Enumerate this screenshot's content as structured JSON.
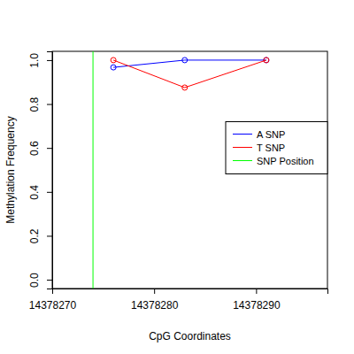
{
  "chart_data": {
    "type": "line",
    "x_label": "CpG Coordinates",
    "y_label": "Methylation Frequency",
    "x": [
      14378276,
      14378283,
      14378291
    ],
    "series": [
      {
        "name": "A SNP",
        "color": "#0000ff",
        "marker": "circle",
        "values": [
          0.967,
          1.0,
          1.0
        ]
      },
      {
        "name": "T SNP",
        "color": "#ff0000",
        "marker": "circle",
        "values": [
          1.0,
          0.875,
          1.0
        ]
      }
    ],
    "vlines": [
      {
        "name": "SNP Position",
        "color": "#00ff00",
        "x": 14378274
      }
    ],
    "xlim": [
      14378270,
      14378297
    ],
    "xticks": [
      14378270,
      14378280,
      14378290
    ],
    "ylim": [
      -0.04,
      1.04
    ],
    "yticks": [
      {
        "value": 0,
        "label": "0.0"
      },
      0.2,
      0.4,
      0.6,
      0.8,
      {
        "value": 1,
        "label": "1.0"
      }
    ],
    "legend": "right"
  }
}
